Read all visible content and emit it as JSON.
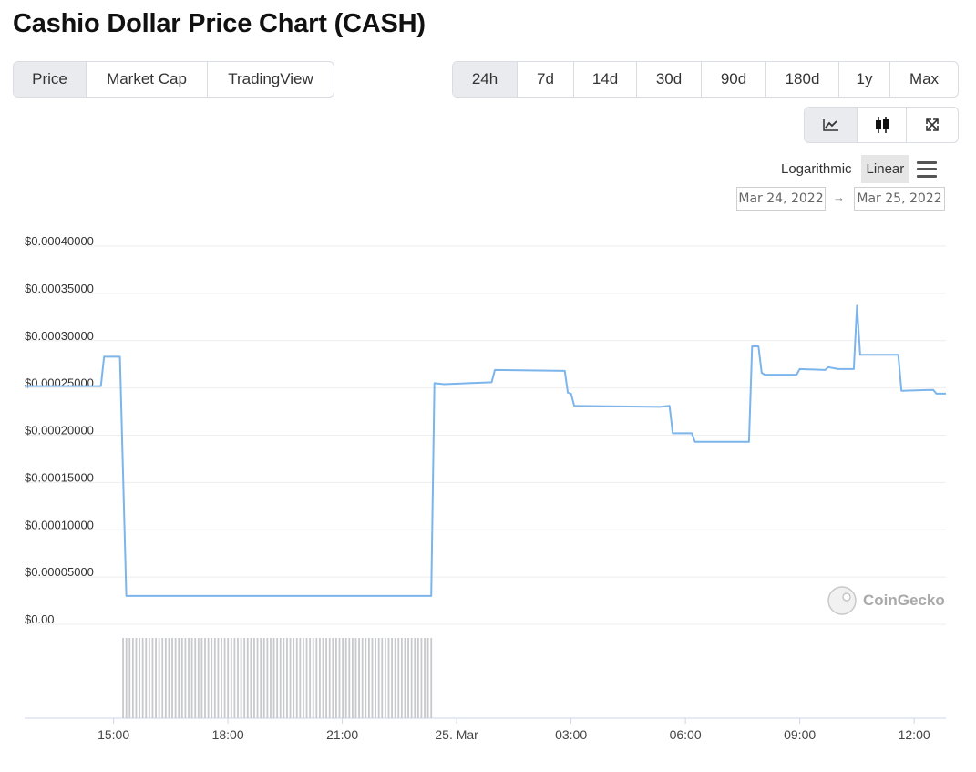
{
  "page_title": "Cashio Dollar Price Chart (CASH)",
  "view_tabs": [
    {
      "label": "Price",
      "active": true
    },
    {
      "label": "Market Cap",
      "active": false
    },
    {
      "label": "TradingView",
      "active": false
    }
  ],
  "range_tabs": [
    {
      "label": "24h",
      "active": true
    },
    {
      "label": "7d",
      "active": false
    },
    {
      "label": "14d",
      "active": false
    },
    {
      "label": "30d",
      "active": false
    },
    {
      "label": "90d",
      "active": false
    },
    {
      "label": "180d",
      "active": false
    },
    {
      "label": "1y",
      "active": false
    },
    {
      "label": "Max",
      "active": false
    }
  ],
  "chart_type_buttons": [
    {
      "icon": "line-chart-icon",
      "active": true
    },
    {
      "icon": "candlestick-icon",
      "active": false
    },
    {
      "icon": "expand-icon",
      "active": false
    }
  ],
  "scale_options": {
    "logarithmic": "Logarithmic",
    "linear": "Linear",
    "active": "linear"
  },
  "date_range": {
    "from": "Mar 24, 2022",
    "to": "Mar 25, 2022",
    "arrow": "→"
  },
  "watermark": "CoinGecko",
  "colors": {
    "line": "#7cb5ec",
    "volume": "#c8c9cc",
    "grid": "#eeeeee"
  },
  "chart_data": {
    "type": "line",
    "title": "",
    "xlabel": "",
    "ylabel": "",
    "ylim": [
      0,
      0.0004
    ],
    "y_ticks": [
      {
        "value": 0,
        "label": "$0.00"
      },
      {
        "value": 5e-05,
        "label": "$0.00005000"
      },
      {
        "value": 0.0001,
        "label": "$0.00010000"
      },
      {
        "value": 0.00015,
        "label": "$0.00015000"
      },
      {
        "value": 0.0002,
        "label": "$0.00020000"
      },
      {
        "value": 0.00025,
        "label": "$0.00025000"
      },
      {
        "value": 0.0003,
        "label": "$0.00030000"
      },
      {
        "value": 0.00035,
        "label": "$0.00035000"
      },
      {
        "value": 0.0004,
        "label": "$0.00040000"
      }
    ],
    "x_ticks": [
      {
        "time": "2022-03-24 15:00",
        "label": "15:00"
      },
      {
        "time": "2022-03-24 18:00",
        "label": "18:00"
      },
      {
        "time": "2022-03-24 21:00",
        "label": "21:00"
      },
      {
        "time": "2022-03-25 00:00",
        "label": "25. Mar"
      },
      {
        "time": "2022-03-25 03:00",
        "label": "03:00"
      },
      {
        "time": "2022-03-25 06:00",
        "label": "06:00"
      },
      {
        "time": "2022-03-25 09:00",
        "label": "09:00"
      },
      {
        "time": "2022-03-25 12:00",
        "label": "12:00"
      }
    ],
    "xlim": [
      "2022-03-24 12:40",
      "2022-03-25 12:50"
    ],
    "series": [
      {
        "points": [
          [
            "2022-03-24 12:40",
            0.000252
          ],
          [
            "2022-03-24 14:40",
            0.000252
          ],
          [
            "2022-03-24 14:45",
            0.000283
          ],
          [
            "2022-03-24 15:10",
            0.000283
          ],
          [
            "2022-03-24 15:20",
            3e-05
          ],
          [
            "2022-03-24 23:20",
            3e-05
          ],
          [
            "2022-03-24 23:25",
            0.000255
          ],
          [
            "2022-03-24 23:40",
            0.000254
          ],
          [
            "2022-03-25 00:55",
            0.000256
          ],
          [
            "2022-03-25 01:00",
            0.000269
          ],
          [
            "2022-03-25 02:50",
            0.000268
          ],
          [
            "2022-03-25 02:55",
            0.000245
          ],
          [
            "2022-03-25 03:00",
            0.000244
          ],
          [
            "2022-03-25 03:05",
            0.000231
          ],
          [
            "2022-03-25 05:20",
            0.00023
          ],
          [
            "2022-03-25 05:35",
            0.000231
          ],
          [
            "2022-03-25 05:40",
            0.000202
          ],
          [
            "2022-03-25 06:10",
            0.000202
          ],
          [
            "2022-03-25 06:15",
            0.000193
          ],
          [
            "2022-03-25 07:40",
            0.000193
          ],
          [
            "2022-03-25 07:45",
            0.000294
          ],
          [
            "2022-03-25 07:55",
            0.000294
          ],
          [
            "2022-03-25 08:00",
            0.000266
          ],
          [
            "2022-03-25 08:05",
            0.000264
          ],
          [
            "2022-03-25 08:55",
            0.000264
          ],
          [
            "2022-03-25 09:00",
            0.00027
          ],
          [
            "2022-03-25 09:40",
            0.000269
          ],
          [
            "2022-03-25 09:45",
            0.000272
          ],
          [
            "2022-03-25 10:00",
            0.00027
          ],
          [
            "2022-03-25 10:25",
            0.00027
          ],
          [
            "2022-03-25 10:30",
            0.000337
          ],
          [
            "2022-03-25 10:35",
            0.000285
          ],
          [
            "2022-03-25 11:35",
            0.000285
          ],
          [
            "2022-03-25 11:40",
            0.000247
          ],
          [
            "2022-03-25 12:30",
            0.000248
          ],
          [
            "2022-03-25 12:35",
            0.000244
          ],
          [
            "2022-03-25 12:50",
            0.000244
          ]
        ]
      }
    ],
    "volume": {
      "start": "2022-03-24 15:15",
      "end": "2022-03-24 23:20",
      "bar_count": 95,
      "relative_level": 1.0
    }
  }
}
